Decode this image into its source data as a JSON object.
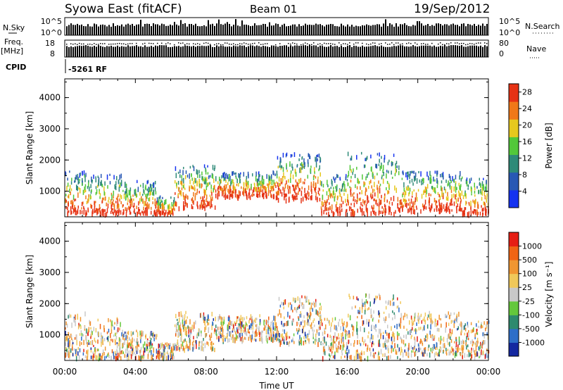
{
  "header": {
    "station": "Syowa East (fitACF)",
    "beam": "Beam 01",
    "date": "19/Sep/2012"
  },
  "top_panels": {
    "nsky_label": "N.Sky",
    "nsky_ticks": [
      "10^5",
      "10^0"
    ],
    "nsearch_label": "N.Search",
    "freq_label": "Freq.",
    "freq_unit": "[MHz]",
    "freq_ticks": [
      "18",
      "8"
    ],
    "nave_label": "Nave",
    "nave_ticks": [
      "80",
      "0"
    ],
    "cpid_label": "CPID",
    "cpid_value": "-5261 RF"
  },
  "chart_data": [
    {
      "type": "heatmap",
      "title": "",
      "ylabel": "Slant Range [km]",
      "xlabel": "",
      "ylim": [
        180,
        4600
      ],
      "yticks": [
        1000,
        2000,
        3000,
        4000
      ],
      "colorbar": {
        "label": "Power [dB]",
        "ticks": [
          "4",
          "8",
          "12",
          "16",
          "20",
          "24",
          "28"
        ],
        "colors": [
          "#1432f0",
          "#2858b4",
          "#2e8a78",
          "#52c83a",
          "#e6c81e",
          "#f07818",
          "#e63214"
        ],
        "range": [
          0,
          30
        ]
      },
      "coverage_bands": [
        {
          "t_start": 0.0,
          "t_end": 1.2,
          "r_min": 250,
          "r_max": 1600
        },
        {
          "t_start": 1.2,
          "t_end": 3.2,
          "r_min": 250,
          "r_max": 1500
        },
        {
          "t_start": 3.2,
          "t_end": 5.2,
          "r_min": 250,
          "r_max": 1300
        },
        {
          "t_start": 5.2,
          "t_end": 6.2,
          "r_min": 250,
          "r_max": 800
        },
        {
          "t_start": 6.2,
          "t_end": 8.5,
          "r_min": 450,
          "r_max": 1800
        },
        {
          "t_start": 8.5,
          "t_end": 12.0,
          "r_min": 800,
          "r_max": 1600
        },
        {
          "t_start": 12.0,
          "t_end": 14.5,
          "r_min": 700,
          "r_max": 2200
        },
        {
          "t_start": 14.5,
          "t_end": 16.0,
          "r_min": 250,
          "r_max": 1500
        },
        {
          "t_start": 16.0,
          "t_end": 19.0,
          "r_min": 250,
          "r_max": 2200
        },
        {
          "t_start": 19.0,
          "t_end": 22.5,
          "r_min": 350,
          "r_max": 1600
        },
        {
          "t_start": 22.5,
          "t_end": 24.0,
          "r_min": 250,
          "r_max": 1400
        }
      ]
    },
    {
      "type": "heatmap",
      "title": "",
      "ylabel": "Slant Range [km]",
      "xlabel": "Time UT",
      "ylim": [
        180,
        4600
      ],
      "yticks": [
        1000,
        2000,
        3000,
        4000
      ],
      "xticks": [
        "00:00",
        "04:00",
        "08:00",
        "12:00",
        "16:00",
        "20:00",
        "00:00"
      ],
      "xlim_hours": [
        0,
        24
      ],
      "colorbar": {
        "label": "Velocity [m s⁻¹]",
        "ticks": [
          "1000",
          "500",
          "100",
          "25",
          "-25",
          "-100",
          "-500",
          "-1000"
        ],
        "colors": [
          "#1428a0",
          "#2e6ec8",
          "#2e8a6e",
          "#64c83c",
          "#c8c8c8",
          "#f0c85a",
          "#f09632",
          "#f06414",
          "#e61e14"
        ],
        "range": [
          -1200,
          1200
        ]
      },
      "coverage_bands": [
        {
          "t_start": 0.0,
          "t_end": 1.2,
          "r_min": 250,
          "r_max": 1700
        },
        {
          "t_start": 1.2,
          "t_end": 3.2,
          "r_min": 250,
          "r_max": 1500
        },
        {
          "t_start": 3.2,
          "t_end": 5.2,
          "r_min": 250,
          "r_max": 1100
        },
        {
          "t_start": 5.2,
          "t_end": 6.2,
          "r_min": 250,
          "r_max": 700
        },
        {
          "t_start": 6.2,
          "t_end": 8.5,
          "r_min": 500,
          "r_max": 1700
        },
        {
          "t_start": 8.5,
          "t_end": 12.0,
          "r_min": 800,
          "r_max": 1600
        },
        {
          "t_start": 12.0,
          "t_end": 14.5,
          "r_min": 700,
          "r_max": 2200
        },
        {
          "t_start": 14.5,
          "t_end": 16.0,
          "r_min": 250,
          "r_max": 1500
        },
        {
          "t_start": 16.0,
          "t_end": 19.0,
          "r_min": 250,
          "r_max": 2300
        },
        {
          "t_start": 19.0,
          "t_end": 22.5,
          "r_min": 350,
          "r_max": 1700
        },
        {
          "t_start": 22.5,
          "t_end": 24.0,
          "r_min": 250,
          "r_max": 1400
        }
      ]
    }
  ]
}
